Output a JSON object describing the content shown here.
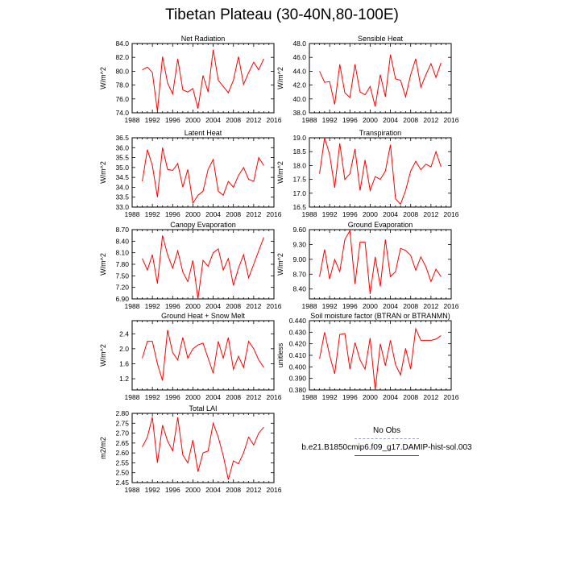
{
  "title": "Tibetan Plateau (30-40N,80-100E)",
  "colors": {
    "series": "#ff0000",
    "obs": "#9aa0c0",
    "axis": "#000000"
  },
  "legend": {
    "obs_label": "No Obs",
    "model_label": "b.e21.B1850cmip6.f09_g17.DAMIP-hist-sol.003"
  },
  "chart_data": [
    {
      "type": "line",
      "title": "Net Radiation",
      "xlabel": "",
      "ylabel": "W/m^2",
      "xlim": [
        1988,
        2016
      ],
      "xticks": [
        1988,
        1992,
        1996,
        2000,
        2004,
        2008,
        2012,
        2016
      ],
      "ylim": [
        74.0,
        84.0
      ],
      "yticks": [
        74.0,
        76.0,
        78.0,
        80.0,
        82.0,
        84.0
      ],
      "ydec": 1,
      "x": [
        1990,
        1991,
        1992,
        1993,
        1994,
        1995,
        1996,
        1997,
        1998,
        1999,
        2000,
        2001,
        2002,
        2003,
        2004,
        2005,
        2006,
        2007,
        2008,
        2009,
        2010,
        2011,
        2012,
        2013,
        2014
      ],
      "series": [
        {
          "values": [
            80.2,
            80.6,
            79.8,
            74.2,
            82.1,
            78.3,
            76.7,
            81.8,
            77.3,
            77.0,
            77.5,
            74.6,
            79.4,
            77.0,
            83.1,
            78.7,
            77.8,
            76.9,
            78.7,
            82.1,
            78.1,
            79.8,
            81.3,
            80.2,
            81.8
          ]
        }
      ]
    },
    {
      "type": "line",
      "title": "Sensible Heat",
      "xlabel": "",
      "ylabel": "W/m^2",
      "xlim": [
        1988,
        2016
      ],
      "xticks": [
        1988,
        1992,
        1996,
        2000,
        2004,
        2008,
        2012,
        2016
      ],
      "ylim": [
        38.0,
        48.0
      ],
      "yticks": [
        38.0,
        40.0,
        42.0,
        44.0,
        46.0,
        48.0
      ],
      "ydec": 1,
      "x": [
        1990,
        1991,
        1992,
        1993,
        1994,
        1995,
        1996,
        1997,
        1998,
        1999,
        2000,
        2001,
        2002,
        2003,
        2004,
        2005,
        2006,
        2007,
        2008,
        2009,
        2010,
        2011,
        2012,
        2013,
        2014
      ],
      "series": [
        {
          "values": [
            44.0,
            42.4,
            42.5,
            39.2,
            45.0,
            40.9,
            40.2,
            45.0,
            41.0,
            40.6,
            41.8,
            38.9,
            43.5,
            40.3,
            46.4,
            42.9,
            42.7,
            40.3,
            43.5,
            45.8,
            41.7,
            43.5,
            45.1,
            43.1,
            45.2
          ]
        }
      ]
    },
    {
      "type": "line",
      "title": "Latent Heat",
      "xlabel": "",
      "ylabel": "W/m^2",
      "xlim": [
        1988,
        2016
      ],
      "xticks": [
        1988,
        1992,
        1996,
        2000,
        2004,
        2008,
        2012,
        2016
      ],
      "ylim": [
        33.0,
        36.5
      ],
      "yticks": [
        33.0,
        33.5,
        34.0,
        34.5,
        35.0,
        35.5,
        36.0,
        36.5
      ],
      "ydec": 1,
      "x": [
        1990,
        1991,
        1992,
        1993,
        1994,
        1995,
        1996,
        1997,
        1998,
        1999,
        2000,
        2001,
        2002,
        2003,
        2004,
        2005,
        2006,
        2007,
        2008,
        2009,
        2010,
        2011,
        2012,
        2013,
        2014
      ],
      "series": [
        {
          "values": [
            34.3,
            35.9,
            35.1,
            33.5,
            36.0,
            34.9,
            34.85,
            35.2,
            34.0,
            34.9,
            33.2,
            33.6,
            33.8,
            34.9,
            35.4,
            33.8,
            33.6,
            34.3,
            34.0,
            34.6,
            35.0,
            34.4,
            34.3,
            35.5,
            35.1
          ]
        }
      ]
    },
    {
      "type": "line",
      "title": "Transpiration",
      "xlabel": "",
      "ylabel": "W/m^2",
      "xlim": [
        1988,
        2016
      ],
      "xticks": [
        1988,
        1992,
        1996,
        2000,
        2004,
        2008,
        2012,
        2016
      ],
      "ylim": [
        16.5,
        19.0
      ],
      "yticks": [
        16.5,
        17.0,
        17.5,
        18.0,
        18.5,
        19.0
      ],
      "ydec": 1,
      "x": [
        1990,
        1991,
        1992,
        1993,
        1994,
        1995,
        1996,
        1997,
        1998,
        1999,
        2000,
        2001,
        2002,
        2003,
        2004,
        2005,
        2006,
        2007,
        2008,
        2009,
        2010,
        2011,
        2012,
        2013,
        2014
      ],
      "series": [
        {
          "values": [
            17.7,
            19.0,
            18.4,
            17.2,
            18.8,
            17.5,
            17.7,
            18.6,
            17.1,
            18.2,
            17.1,
            17.6,
            17.5,
            17.8,
            18.75,
            16.8,
            16.6,
            17.1,
            17.8,
            18.15,
            17.85,
            18.05,
            17.95,
            18.5,
            17.95
          ]
        }
      ]
    },
    {
      "type": "line",
      "title": "Canopy Evaporation",
      "xlabel": "",
      "ylabel": "W/m^2",
      "xlim": [
        1988,
        2016
      ],
      "xticks": [
        1988,
        1992,
        1996,
        2000,
        2004,
        2008,
        2012,
        2016
      ],
      "ylim": [
        6.9,
        8.7
      ],
      "yticks": [
        6.9,
        7.2,
        7.5,
        7.8,
        8.1,
        8.4,
        8.7
      ],
      "ydec": 2,
      "x": [
        1990,
        1991,
        1992,
        1993,
        1994,
        1995,
        1996,
        1997,
        1998,
        1999,
        2000,
        2001,
        2002,
        2003,
        2004,
        2005,
        2006,
        2007,
        2008,
        2009,
        2010,
        2011,
        2012,
        2013,
        2014
      ],
      "series": [
        {
          "values": [
            7.95,
            7.65,
            8.05,
            7.3,
            8.55,
            8.05,
            7.7,
            8.15,
            7.6,
            7.35,
            7.9,
            6.9,
            7.9,
            7.75,
            8.1,
            8.2,
            7.65,
            7.95,
            7.25,
            7.7,
            8.05,
            7.45,
            7.8,
            8.15,
            8.5
          ]
        }
      ]
    },
    {
      "type": "line",
      "title": "Ground Evaporation",
      "xlabel": "",
      "ylabel": "W/m^2",
      "xlim": [
        1988,
        2016
      ],
      "xticks": [
        1988,
        1992,
        1996,
        2000,
        2004,
        2008,
        2012,
        2016
      ],
      "ylim": [
        8.2,
        9.6
      ],
      "yticks": [
        8.4,
        8.7,
        9.0,
        9.3,
        9.6
      ],
      "ydec": 2,
      "x": [
        1990,
        1991,
        1992,
        1993,
        1994,
        1995,
        1996,
        1997,
        1998,
        1999,
        2000,
        2001,
        2002,
        2003,
        2004,
        2005,
        2006,
        2007,
        2008,
        2009,
        2010,
        2011,
        2012,
        2013,
        2014
      ],
      "series": [
        {
          "values": [
            8.65,
            9.2,
            8.6,
            9.0,
            8.75,
            9.4,
            9.58,
            8.5,
            9.35,
            9.35,
            8.3,
            9.05,
            8.45,
            9.4,
            8.65,
            8.75,
            9.22,
            9.18,
            9.08,
            8.78,
            9.05,
            8.85,
            8.55,
            8.8,
            8.65
          ]
        }
      ]
    },
    {
      "type": "line",
      "title": "Ground Heat + Snow Melt",
      "xlabel": "",
      "ylabel": "W/m^2",
      "xlim": [
        1988,
        2016
      ],
      "xticks": [
        1988,
        1992,
        1996,
        2000,
        2004,
        2008,
        2012,
        2016
      ],
      "ylim": [
        0.9,
        2.75
      ],
      "yticks": [
        1.2,
        1.6,
        2.0,
        2.4
      ],
      "ydec": 1,
      "x": [
        1990,
        1991,
        1992,
        1993,
        1994,
        1995,
        1996,
        1997,
        1998,
        1999,
        2000,
        2001,
        2002,
        2003,
        2004,
        2005,
        2006,
        2007,
        2008,
        2009,
        2010,
        2011,
        2012,
        2013,
        2014
      ],
      "series": [
        {
          "values": [
            1.75,
            2.2,
            2.2,
            1.6,
            1.15,
            2.5,
            1.9,
            1.7,
            2.3,
            1.75,
            2.0,
            2.1,
            2.15,
            1.75,
            1.35,
            2.2,
            1.75,
            2.3,
            1.45,
            1.8,
            1.5,
            2.2,
            2.0,
            1.7,
            1.5
          ]
        }
      ]
    },
    {
      "type": "line",
      "title": "Soil moisture factor (BTRAN or BTRANMN)",
      "xlabel": "",
      "ylabel": "unitless",
      "xlim": [
        1988,
        2016
      ],
      "xticks": [
        1988,
        1992,
        1996,
        2000,
        2004,
        2008,
        2012,
        2016
      ],
      "ylim": [
        0.38,
        0.44
      ],
      "yticks": [
        0.38,
        0.39,
        0.4,
        0.41,
        0.42,
        0.43,
        0.44
      ],
      "ydec": 3,
      "x": [
        1990,
        1991,
        1992,
        1993,
        1994,
        1995,
        1996,
        1997,
        1998,
        1999,
        2000,
        2001,
        2002,
        2003,
        2004,
        2005,
        2006,
        2007,
        2008,
        2009,
        2010,
        2011,
        2012,
        2013,
        2014
      ],
      "series": [
        {
          "values": [
            0.407,
            0.43,
            0.41,
            0.394,
            0.428,
            0.429,
            0.398,
            0.421,
            0.406,
            0.398,
            0.425,
            0.38,
            0.42,
            0.401,
            0.423,
            0.402,
            0.393,
            0.416,
            0.398,
            0.433,
            0.423,
            0.423,
            0.423,
            0.424,
            0.427
          ]
        }
      ]
    },
    {
      "type": "line",
      "title": "Total LAI",
      "xlabel": "",
      "ylabel": "m2/m2",
      "xlim": [
        1988,
        2016
      ],
      "xticks": [
        1988,
        1992,
        1996,
        2000,
        2004,
        2008,
        2012,
        2016
      ],
      "ylim": [
        2.45,
        2.8
      ],
      "yticks": [
        2.45,
        2.5,
        2.55,
        2.6,
        2.65,
        2.7,
        2.75,
        2.8
      ],
      "ydec": 2,
      "x": [
        1990,
        1991,
        1992,
        1993,
        1994,
        1995,
        1996,
        1997,
        1998,
        1999,
        2000,
        2001,
        2002,
        2003,
        2004,
        2005,
        2006,
        2007,
        2008,
        2009,
        2010,
        2011,
        2012,
        2013,
        2014
      ],
      "series": [
        {
          "values": [
            2.63,
            2.68,
            2.78,
            2.55,
            2.74,
            2.66,
            2.61,
            2.78,
            2.59,
            2.55,
            2.665,
            2.505,
            2.6,
            2.61,
            2.75,
            2.68,
            2.585,
            2.465,
            2.56,
            2.545,
            2.6,
            2.68,
            2.64,
            2.7,
            2.73
          ]
        }
      ]
    }
  ]
}
